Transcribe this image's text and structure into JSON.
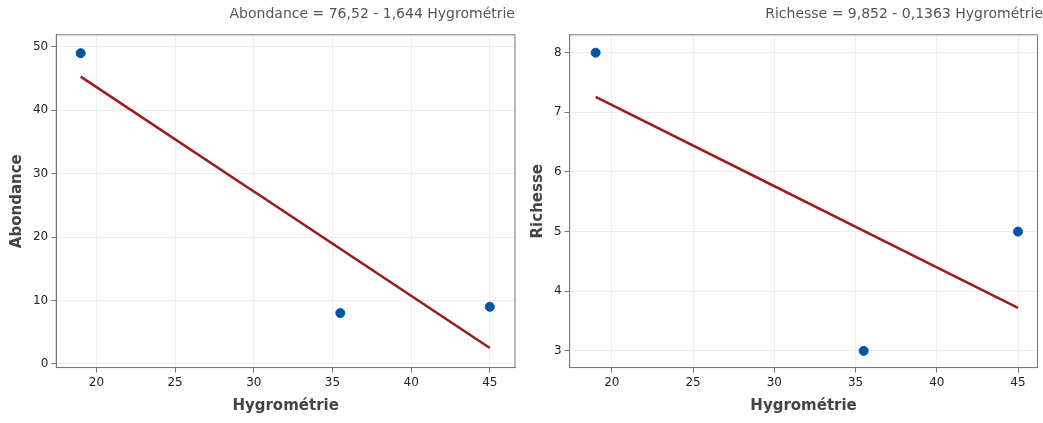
{
  "chart_data": [
    {
      "type": "scatter",
      "title": "Abondance = 76,52 - 1,644 Hygrométrie",
      "xlabel": "Hygrométrie",
      "ylabel": "Abondance",
      "series": [
        {
          "color": "#0054a6",
          "marker": "circle",
          "x": [
            19,
            35.5,
            45
          ],
          "values": [
            49,
            8,
            9
          ]
        },
        {
          "type": "line",
          "color": "#9b1c1c",
          "x": [
            19,
            45
          ],
          "values": [
            45.3,
            2.5
          ]
        }
      ],
      "xlim": [
        17.45,
        46.6
      ],
      "xticks": [
        20,
        25,
        30,
        35,
        40,
        45
      ],
      "ylim": [
        -0.6,
        51.9
      ],
      "yticks": [
        0,
        10,
        20,
        30,
        40,
        50
      ],
      "grid": true
    },
    {
      "type": "scatter",
      "title": "Richesse = 9,852 - 0,1363 Hygrométrie",
      "xlabel": "Hygrométrie",
      "ylabel": "Richesse",
      "series": [
        {
          "color": "#0054a6",
          "marker": "circle",
          "x": [
            19,
            35.5,
            45
          ],
          "values": [
            8,
            3,
            5
          ]
        },
        {
          "type": "line",
          "color": "#9b1c1c",
          "x": [
            19,
            45
          ],
          "values": [
            7.26,
            3.72
          ]
        }
      ],
      "xlim": [
        17.4,
        46.2
      ],
      "xticks": [
        20,
        25,
        30,
        35,
        40,
        45
      ],
      "ylim": [
        2.72,
        8.3
      ],
      "yticks": [
        3,
        4,
        5,
        6,
        7,
        8
      ],
      "grid": true
    }
  ]
}
